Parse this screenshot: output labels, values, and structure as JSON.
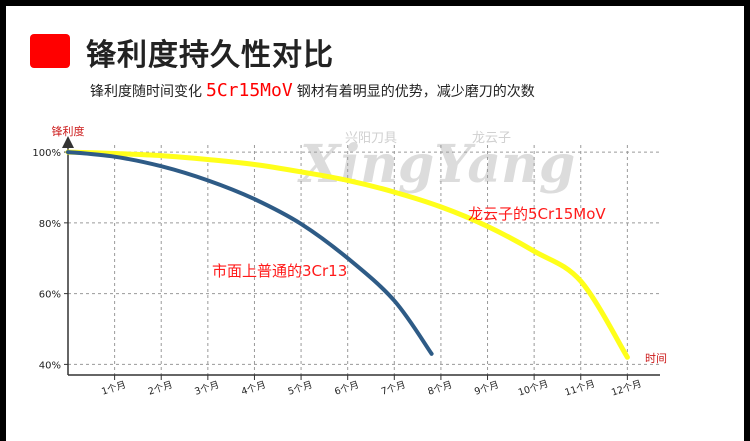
{
  "header": {
    "title": "锋利度持久性对比",
    "subtitle_prefix": "锋利度随时间变化",
    "subtitle_highlight": "5Cr15MoV",
    "subtitle_suffix": "钢材有着明显的优势，减少磨刀的次数"
  },
  "watermark": {
    "brand_cn": "兴阳刀具",
    "brand_en": "XingYang",
    "brand_cn2": "龙云子"
  },
  "colors": {
    "accent": "#ff0000",
    "series_a": "#ffff1a",
    "series_b": "#2e5b86"
  },
  "chart_data": {
    "type": "line",
    "ylabel": "锋利度",
    "xlabel": "时间",
    "yticks": [
      "100%",
      "80%",
      "60%",
      "40%"
    ],
    "ylim": [
      37,
      102
    ],
    "xlim": [
      0,
      12.7
    ],
    "xtick_labels": [
      "1个月",
      "2个月",
      "3个月",
      "4个月",
      "5个月",
      "6个月",
      "7个月",
      "8个月",
      "9个月",
      "10个月",
      "11个月",
      "12个月"
    ],
    "grid": true,
    "series": [
      {
        "name": "龙云子的5Cr15MoV",
        "color": "#ffff1a",
        "x": [
          0,
          1,
          2,
          3,
          4,
          5,
          6,
          7,
          8,
          9,
          10,
          11,
          12
        ],
        "y": [
          100,
          99.6,
          99,
          97.9,
          96.5,
          94.4,
          92,
          88.7,
          84.5,
          79,
          72,
          63.5,
          42
        ]
      },
      {
        "name": "市面上普通的3Cr13",
        "color": "#2e5b86",
        "x": [
          0,
          1,
          2,
          3,
          4,
          5,
          6,
          7,
          7.8
        ],
        "y": [
          100,
          98.7,
          96,
          92,
          86.7,
          79.7,
          70,
          58,
          43
        ]
      }
    ]
  }
}
